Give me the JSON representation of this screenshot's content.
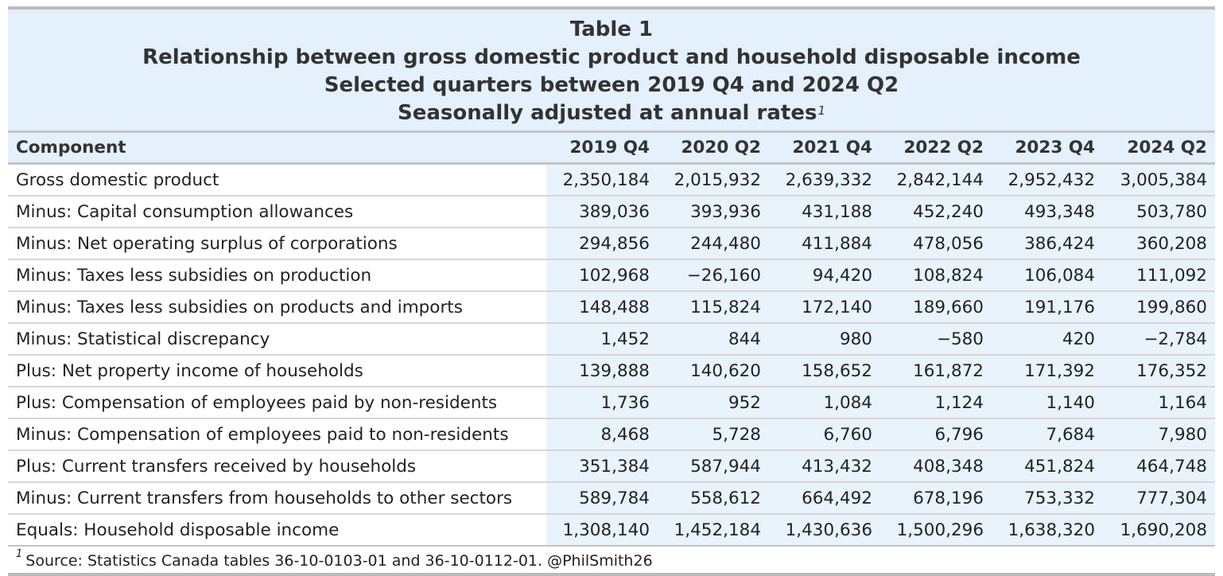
{
  "title": {
    "line1": "Table 1",
    "line2": "Relationship between gross domestic product and household disposable income",
    "line3": "Selected quarters between 2019 Q4 and 2024 Q2",
    "line4": "Seasonally adjusted at annual rates",
    "footnote_marker": "1"
  },
  "table": {
    "columns": [
      "Component",
      "2019 Q4",
      "2020 Q2",
      "2021 Q4",
      "2022 Q2",
      "2023 Q4",
      "2024 Q2"
    ],
    "rows": [
      {
        "label": "Gross domestic product",
        "values": [
          "2,350,184",
          "2,015,932",
          "2,639,332",
          "2,842,144",
          "2,952,432",
          "3,005,384"
        ]
      },
      {
        "label": "Minus: Capital consumption allowances",
        "values": [
          "389,036",
          "393,936",
          "431,188",
          "452,240",
          "493,348",
          "503,780"
        ]
      },
      {
        "label": "Minus: Net operating surplus of corporations",
        "values": [
          "294,856",
          "244,480",
          "411,884",
          "478,056",
          "386,424",
          "360,208"
        ]
      },
      {
        "label": "Minus: Taxes less subsidies on production",
        "values": [
          "102,968",
          "−26,160",
          "94,420",
          "108,824",
          "106,084",
          "111,092"
        ]
      },
      {
        "label": "Minus: Taxes less subsidies on products and imports",
        "values": [
          "148,488",
          "115,824",
          "172,140",
          "189,660",
          "191,176",
          "199,860"
        ]
      },
      {
        "label": "Minus: Statistical discrepancy",
        "values": [
          "1,452",
          "844",
          "980",
          "−580",
          "420",
          "−2,784"
        ]
      },
      {
        "label": "Plus: Net property income of households",
        "values": [
          "139,888",
          "140,620",
          "158,652",
          "161,872",
          "171,392",
          "176,352"
        ]
      },
      {
        "label": "Plus: Compensation of employees paid by non-residents",
        "values": [
          "1,736",
          "952",
          "1,084",
          "1,124",
          "1,140",
          "1,164"
        ]
      },
      {
        "label": "Minus: Compensation of employees paid to non-residents",
        "values": [
          "8,468",
          "5,728",
          "6,760",
          "6,796",
          "7,684",
          "7,980"
        ]
      },
      {
        "label": "Plus: Current transfers received by households",
        "values": [
          "351,384",
          "587,944",
          "413,432",
          "408,348",
          "451,824",
          "464,748"
        ]
      },
      {
        "label": "Minus: Current transfers from households to other sectors",
        "values": [
          "589,784",
          "558,612",
          "664,492",
          "678,196",
          "753,332",
          "777,304"
        ]
      },
      {
        "label": "Equals: Household disposable income",
        "values": [
          "1,308,140",
          "1,452,184",
          "1,430,636",
          "1,500,296",
          "1,638,320",
          "1,690,208"
        ]
      }
    ]
  },
  "footnote": {
    "marker": "1",
    "text": "Source: Statistics Canada tables 36-10-0103-01 and 36-10-0112-01. @PhilSmith26"
  }
}
